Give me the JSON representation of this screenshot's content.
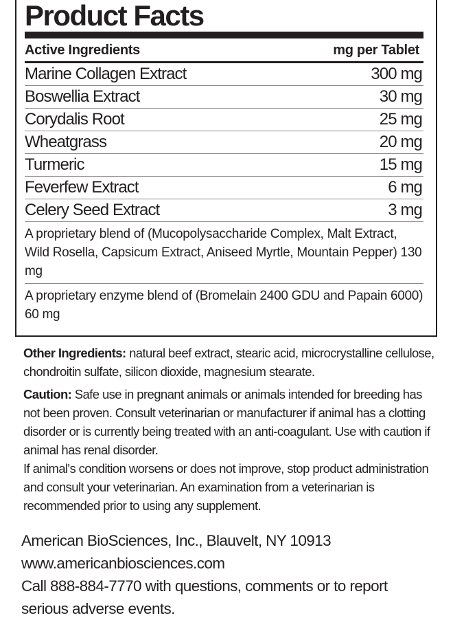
{
  "panel": {
    "title": "Product Facts",
    "header": {
      "left": "Active Ingredients",
      "right": "mg per Tablet"
    },
    "ingredients": [
      {
        "name": "Marine Collagen Extract",
        "amount": "300 mg"
      },
      {
        "name": "Boswellia Extract",
        "amount": "30 mg"
      },
      {
        "name": "Corydalis Root",
        "amount": "25 mg"
      },
      {
        "name": "Wheatgrass",
        "amount": "20 mg"
      },
      {
        "name": "Turmeric",
        "amount": "15 mg"
      },
      {
        "name": "Feverfew Extract",
        "amount": "6 mg"
      },
      {
        "name": "Celery Seed Extract",
        "amount": "3 mg"
      }
    ],
    "blends": [
      "A proprietary blend of (Mucopolysaccharide Complex, Malt Extract, Wild Rosella, Capsicum Extract, Aniseed Myrtle, Mountain Pepper) 130 mg",
      "A proprietary enzyme blend of (Bromelain 2400 GDU and Papain 6000) 60 mg"
    ]
  },
  "other": {
    "label": "Other Ingredients:",
    "text": " natural beef extract, stearic acid, microcrystalline cellulose, chondroitin sulfate, silicon dioxide, magnesium stearate."
  },
  "caution": {
    "label": "Caution:",
    "text": " Safe use in pregnant animals or animals intended for breeding has not been proven. Consult veterinarian or manufacturer if animal has a clotting disorder or is currently being treated with an anti-coagulant. Use with caution if animal has renal disorder.",
    "text2": "If animal's condition worsens or does not improve, stop product administration and consult your veterinarian. An examination from a veterinarian is recommended prior to using any supplement."
  },
  "footer": {
    "company": "American BioSciences, Inc., Blauvelt, NY 10913",
    "website": "www.americanbiosciences.com",
    "contact": "Call 888-884-7770 with questions, comments or to report serious adverse events."
  }
}
